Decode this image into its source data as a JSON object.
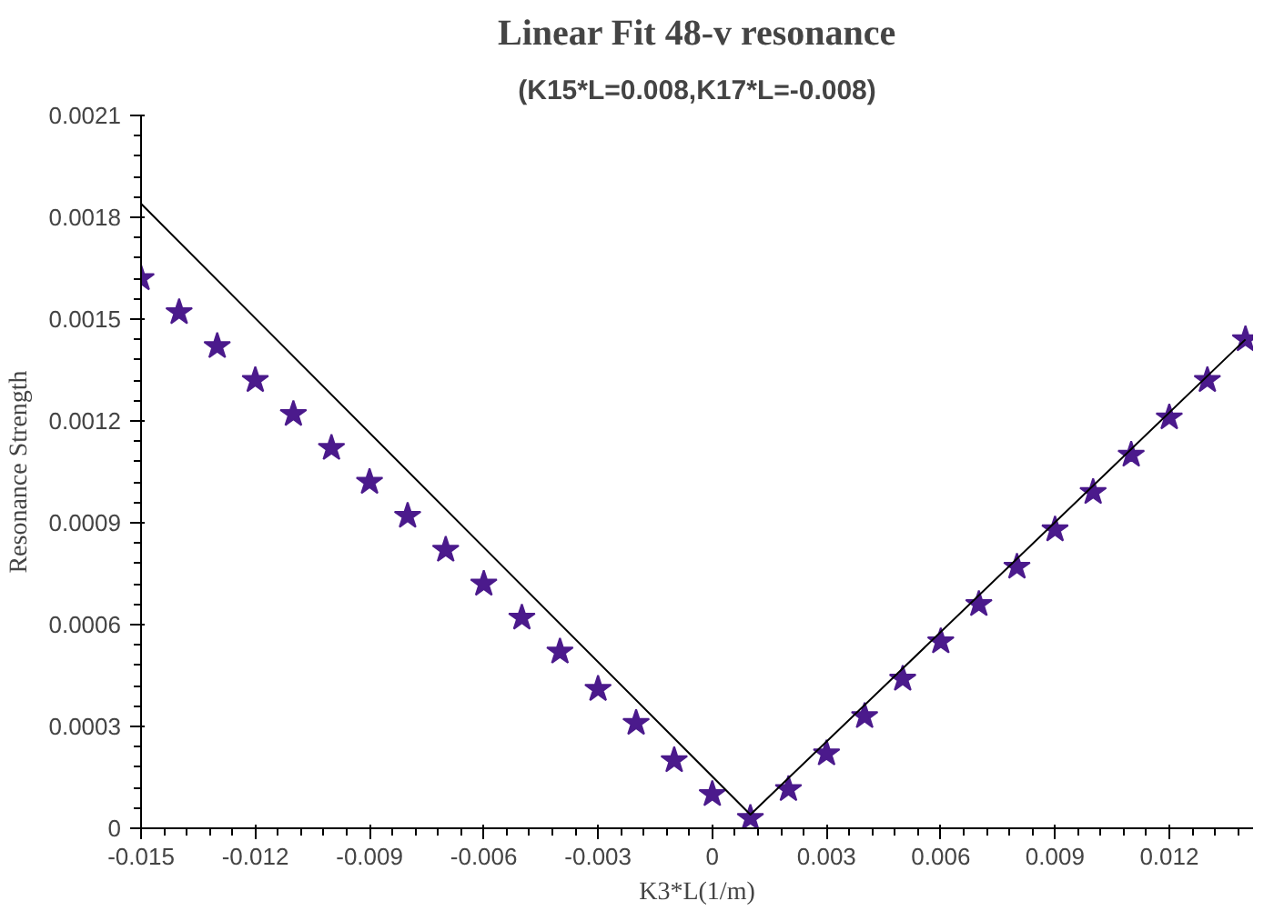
{
  "chart_data": {
    "type": "scatter",
    "title": "Linear Fit 48-v resonance",
    "subtitle": "(K15*L=0.008,K17*L=-0.008)",
    "xlabel": "K3*L(1/m)",
    "ylabel": "Resonance Strength",
    "xlim": [
      -0.015,
      0.0142
    ],
    "ylim": [
      0,
      0.0021
    ],
    "xticks": [
      -0.015,
      -0.012,
      -0.009,
      -0.006,
      -0.003,
      0,
      0.003,
      0.006,
      0.009,
      0.012
    ],
    "yticks": [
      0,
      0.0003,
      0.0006,
      0.0009,
      0.0012,
      0.0015,
      0.0018,
      0.0021
    ],
    "grid": false,
    "marker": "star",
    "series": [
      {
        "color": "#4b1a8c",
        "x": [
          -0.015,
          -0.014,
          -0.013,
          -0.012,
          -0.011,
          -0.01,
          -0.009,
          -0.008,
          -0.007,
          -0.006,
          -0.005,
          -0.004,
          -0.003,
          -0.002,
          -0.001,
          0,
          0.001,
          0.002,
          0.003,
          0.004,
          0.005,
          0.006,
          0.007,
          0.008,
          0.009,
          0.01,
          0.011,
          0.012,
          0.013,
          0.014
        ],
        "values": [
          0.00162,
          0.00152,
          0.00142,
          0.00132,
          0.00122,
          0.00112,
          0.00102,
          0.00092,
          0.00082,
          0.00072,
          0.00062,
          0.00052,
          0.00041,
          0.00031,
          0.0002,
          0.0001,
          3e-05,
          0.000115,
          0.00022,
          0.00033,
          0.00044,
          0.00055,
          0.00066,
          0.00077,
          0.00088,
          0.00099,
          0.0011,
          0.00121,
          0.00132,
          0.00144
        ]
      },
      {
        "type": "line",
        "color": "#000000",
        "line_style": "solid",
        "marker": "none",
        "x": [
          -0.015,
          0.001,
          0.014
        ],
        "values": [
          0.00184,
          4e-05,
          0.00144
        ]
      }
    ]
  }
}
